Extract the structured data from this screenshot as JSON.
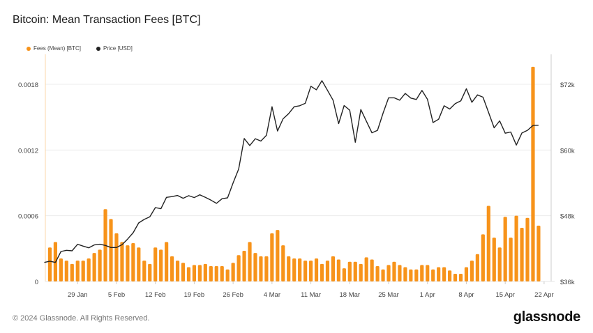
{
  "title": "Bitcoin: Mean Transaction Fees [BTC]",
  "footer": "© 2024 Glassnode. All Rights Reserved.",
  "logo": "glassnode",
  "colors": {
    "fees": "#f7931a",
    "price": "#222222",
    "grid": "#ececec"
  },
  "chart_data": {
    "type": "bar+line",
    "title": "Bitcoin: Mean Transaction Fees [BTC]",
    "legend_position": "top-left",
    "grid": true,
    "x_ticks": [
      "29 Jan",
      "5 Feb",
      "12 Feb",
      "19 Feb",
      "26 Feb",
      "4 Mar",
      "11 Mar",
      "18 Mar",
      "25 Mar",
      "1 Apr",
      "8 Apr",
      "15 Apr",
      "22 Apr"
    ],
    "x_tick_dates": [
      "2024-01-29",
      "2024-02-05",
      "2024-02-12",
      "2024-02-19",
      "2024-02-26",
      "2024-03-04",
      "2024-03-11",
      "2024-03-18",
      "2024-03-25",
      "2024-04-01",
      "2024-04-08",
      "2024-04-15",
      "2024-04-22"
    ],
    "y_left": {
      "ticks": [
        "0",
        "0.0006",
        "0.0012",
        "0.0018"
      ],
      "tick_values": [
        0,
        0.0006,
        0.0012,
        0.0018
      ],
      "range": [
        0,
        0.00206
      ]
    },
    "y_right": {
      "ticks": [
        "$36k",
        "$48k",
        "$60k",
        "$72k"
      ],
      "tick_values": [
        36000,
        48000,
        60000,
        72000
      ],
      "range": [
        36000,
        77800
      ]
    },
    "series": [
      {
        "name": "Fees (Mean) [BTC]",
        "type": "bar",
        "axis": "left",
        "start_date": "2024-01-24",
        "values": [
          0.00031,
          0.00036,
          0.00021,
          0.00019,
          0.00016,
          0.00019,
          0.00019,
          0.00021,
          0.00026,
          0.00029,
          0.00066,
          0.00057,
          0.00044,
          0.00036,
          0.00033,
          0.00035,
          0.00031,
          0.00019,
          0.00016,
          0.00031,
          0.00029,
          0.00036,
          0.00023,
          0.00019,
          0.00017,
          0.00013,
          0.00015,
          0.00015,
          0.00016,
          0.00014,
          0.00014,
          0.00014,
          0.00011,
          0.00017,
          0.00024,
          0.00028,
          0.00036,
          0.00026,
          0.00023,
          0.00023,
          0.00044,
          0.00047,
          0.00033,
          0.00023,
          0.00021,
          0.00021,
          0.00019,
          0.00019,
          0.00021,
          0.00016,
          0.00019,
          0.00023,
          0.0002,
          0.00012,
          0.00018,
          0.00018,
          0.00016,
          0.00022,
          0.0002,
          0.00014,
          0.00011,
          0.00015,
          0.00018,
          0.00015,
          0.00013,
          0.00011,
          0.00011,
          0.00015,
          0.00015,
          0.00011,
          0.00013,
          0.00013,
          0.0001,
          7e-05,
          7e-05,
          0.00013,
          0.00019,
          0.00025,
          0.00043,
          0.00069,
          0.0004,
          0.00031,
          0.00059,
          0.0004,
          0.0006,
          0.00049,
          0.00058,
          0.00196,
          0.00051
        ]
      },
      {
        "name": "Price [USD]",
        "type": "line",
        "axis": "right",
        "start_date": "2024-01-23",
        "values": [
          39470,
          39700,
          39470,
          41470,
          41690,
          41600,
          42790,
          42450,
          42150,
          42660,
          42790,
          42580,
          42190,
          42190,
          42710,
          43730,
          44910,
          46690,
          47330,
          47800,
          49490,
          49280,
          51360,
          51490,
          51700,
          51190,
          51660,
          51320,
          51830,
          51360,
          50850,
          50260,
          51100,
          51270,
          53990,
          56530,
          62100,
          60820,
          62060,
          61630,
          62690,
          67910,
          63460,
          65700,
          66630,
          67910,
          68080,
          68540,
          71640,
          71000,
          72660,
          70880,
          69100,
          64810,
          68120,
          67270,
          61420,
          67400,
          65240,
          63150,
          63590,
          66730,
          69530,
          69530,
          69100,
          70330,
          69480,
          69230,
          70880,
          69270,
          65020,
          65620,
          68080,
          67480,
          68460,
          68970,
          71180,
          68720,
          70070,
          69650,
          66860,
          64050,
          65320,
          63070,
          63280,
          60910,
          63110,
          63590,
          64480,
          64520
        ]
      }
    ]
  }
}
